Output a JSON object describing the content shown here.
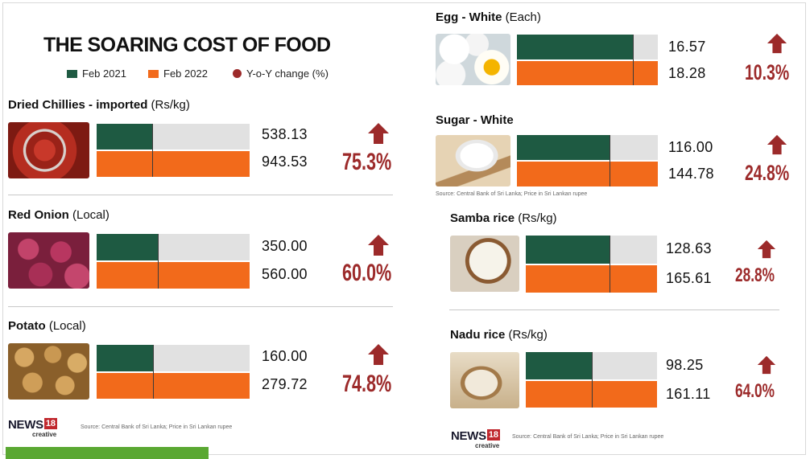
{
  "title": "THE SOARING COST OF FOOD",
  "legend": {
    "feb2021": "Feb 2021",
    "feb2022": "Feb 2022",
    "yoy": "Y-o-Y change (%)"
  },
  "colors": {
    "feb2021": "#1e5a42",
    "feb2022": "#f26a1b",
    "track": "#e1e1e1",
    "change": "#9c2a2a"
  },
  "chart_data": {
    "type": "bar",
    "title": "THE SOARING COST OF FOOD",
    "unit": "Rs",
    "series_names": [
      "Feb 2021",
      "Feb 2022"
    ],
    "items": [
      {
        "id": "chillies",
        "name": "Dried Chillies - imported",
        "unit": "(Rs/kg)",
        "feb2021_label": "538.13",
        "feb2022_label": "943.53",
        "feb2021": 538.13,
        "feb2022": 943.53,
        "change_label": "75.3%",
        "change": 75.3
      },
      {
        "id": "onion",
        "name": "Red Onion",
        "unit": "(Local)",
        "feb2021_label": "350.00",
        "feb2022_label": "560.00",
        "feb2021": 350.0,
        "feb2022": 560.0,
        "change_label": "60.0%",
        "change": 60.0
      },
      {
        "id": "potato",
        "name": "Potato",
        "unit": "(Local)",
        "feb2021_label": "160.00",
        "feb2022_label": "279.72",
        "feb2021": 160.0,
        "feb2022": 279.72,
        "change_label": "74.8%",
        "change": 74.8
      },
      {
        "id": "egg",
        "name": "Egg - White",
        "unit": "(Each)",
        "feb2021_label": "16.57",
        "feb2022_label": "18.28",
        "feb2021": 16.57,
        "feb2022": 18.28,
        "change_label": "10.3%",
        "change": 10.3
      },
      {
        "id": "sugar",
        "name": "Sugar - White",
        "unit": "",
        "feb2021_label": "116.00",
        "feb2022_label": "144.78",
        "feb2021": 116.0,
        "feb2022": 144.78,
        "change_label": "24.8%",
        "change": 24.8
      },
      {
        "id": "samba",
        "name": "Samba rice",
        "unit": "(Rs/kg)",
        "feb2021_label": "128.63",
        "feb2022_label": "165.61",
        "feb2021": 128.63,
        "feb2022": 165.61,
        "change_label": "28.8%",
        "change": 28.8
      },
      {
        "id": "nadu",
        "name": "Nadu rice",
        "unit": "(Rs/kg)",
        "feb2021_label": "98.25",
        "feb2022_label": "161.11",
        "feb2021": 98.25,
        "feb2022": 161.11,
        "change_label": "64.0%",
        "change": 64.0
      }
    ]
  },
  "sources": {
    "left": "Source: Central Bank of Sri Lanka; Price in Sri Lankan rupee",
    "sugar": "Source: Central Bank of Sri Lanka; Price in Sri Lankan rupee",
    "right": "Source: Central Bank of Sri Lanka; Price in Sri Lankan rupee"
  },
  "logo": {
    "news": "NEWS",
    "num": "18",
    "creative": "creative"
  },
  "icons": {
    "change": "up-arrow-icon"
  }
}
